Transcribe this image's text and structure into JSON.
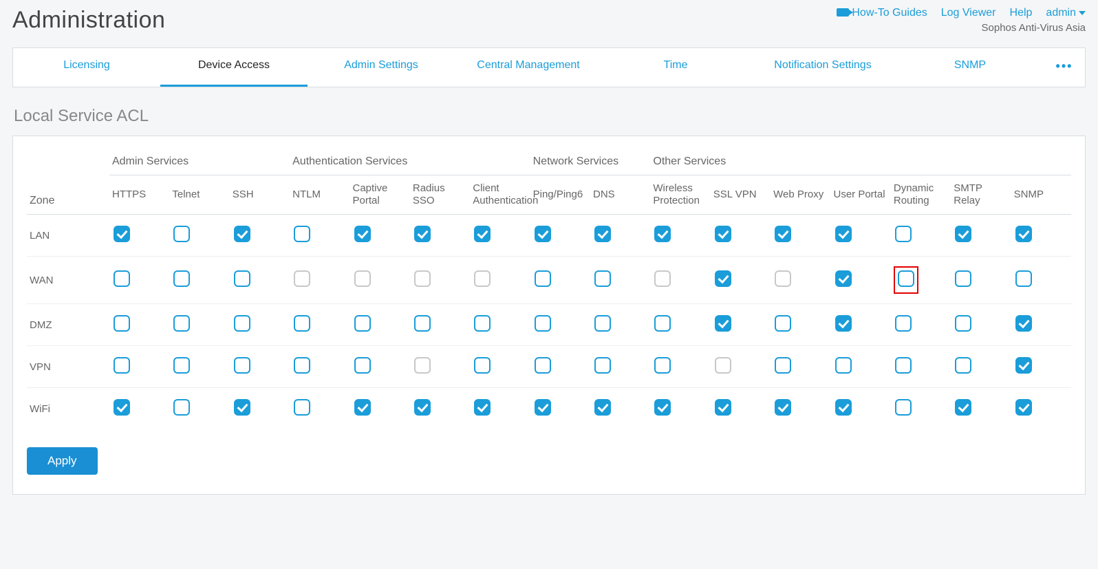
{
  "header": {
    "title": "Administration",
    "links": {
      "guides": "How-To Guides",
      "log_viewer": "Log Viewer",
      "help": "Help",
      "user": "admin"
    },
    "subtitle": "Sophos Anti-Virus Asia"
  },
  "tabs": [
    {
      "id": "licensing",
      "label": "Licensing",
      "active": false
    },
    {
      "id": "device-access",
      "label": "Device Access",
      "active": true
    },
    {
      "id": "admin-settings",
      "label": "Admin Settings",
      "active": false
    },
    {
      "id": "central-mgmt",
      "label": "Central Management",
      "active": false
    },
    {
      "id": "time",
      "label": "Time",
      "active": false
    },
    {
      "id": "notification",
      "label": "Notification Settings",
      "active": false
    },
    {
      "id": "snmp",
      "label": "SNMP",
      "active": false
    }
  ],
  "section": {
    "title": "Local Service ACL"
  },
  "acl": {
    "zone_header": "Zone",
    "groups": [
      {
        "id": "admin",
        "label": "Admin Services",
        "span": 3
      },
      {
        "id": "auth",
        "label": "Authentication Services",
        "span": 4
      },
      {
        "id": "network",
        "label": "Network Services",
        "span": 2
      },
      {
        "id": "other",
        "label": "Other Services",
        "span": 7
      }
    ],
    "columns": [
      {
        "id": "https",
        "label": "HTTPS"
      },
      {
        "id": "telnet",
        "label": "Telnet"
      },
      {
        "id": "ssh",
        "label": "SSH"
      },
      {
        "id": "ntlm",
        "label": "NTLM"
      },
      {
        "id": "captive",
        "label": "Captive Portal"
      },
      {
        "id": "radius",
        "label": "Radius SSO"
      },
      {
        "id": "clientauth",
        "label": "Client Authentication"
      },
      {
        "id": "ping",
        "label": "Ping/Ping6"
      },
      {
        "id": "dns",
        "label": "DNS"
      },
      {
        "id": "wireless",
        "label": "Wireless Protection"
      },
      {
        "id": "sslvpn",
        "label": "SSL VPN"
      },
      {
        "id": "webproxy",
        "label": "Web Proxy"
      },
      {
        "id": "userportal",
        "label": "User Portal"
      },
      {
        "id": "dynrouting",
        "label": "Dynamic Routing"
      },
      {
        "id": "smtprelay",
        "label": "SMTP Relay"
      },
      {
        "id": "snmp",
        "label": "SNMP"
      }
    ],
    "zones": [
      {
        "id": "lan",
        "label": "LAN",
        "cells": [
          {
            "c": true
          },
          {
            "c": false
          },
          {
            "c": true
          },
          {
            "c": false
          },
          {
            "c": true
          },
          {
            "c": true
          },
          {
            "c": true
          },
          {
            "c": true
          },
          {
            "c": true
          },
          {
            "c": true
          },
          {
            "c": true
          },
          {
            "c": true
          },
          {
            "c": true
          },
          {
            "c": false
          },
          {
            "c": true
          },
          {
            "c": true
          }
        ]
      },
      {
        "id": "wan",
        "label": "WAN",
        "cells": [
          {
            "c": false
          },
          {
            "c": false
          },
          {
            "c": false
          },
          {
            "c": false,
            "d": true
          },
          {
            "c": false,
            "d": true
          },
          {
            "c": false,
            "d": true
          },
          {
            "c": false,
            "d": true
          },
          {
            "c": false
          },
          {
            "c": false
          },
          {
            "c": false,
            "d": true
          },
          {
            "c": true
          },
          {
            "c": false,
            "d": true
          },
          {
            "c": true
          },
          {
            "c": false,
            "hl": true
          },
          {
            "c": false
          },
          {
            "c": false
          }
        ]
      },
      {
        "id": "dmz",
        "label": "DMZ",
        "cells": [
          {
            "c": false
          },
          {
            "c": false
          },
          {
            "c": false
          },
          {
            "c": false
          },
          {
            "c": false
          },
          {
            "c": false
          },
          {
            "c": false
          },
          {
            "c": false
          },
          {
            "c": false
          },
          {
            "c": false
          },
          {
            "c": true
          },
          {
            "c": false
          },
          {
            "c": true
          },
          {
            "c": false
          },
          {
            "c": false
          },
          {
            "c": true
          }
        ]
      },
      {
        "id": "vpn",
        "label": "VPN",
        "cells": [
          {
            "c": false
          },
          {
            "c": false
          },
          {
            "c": false
          },
          {
            "c": false
          },
          {
            "c": false
          },
          {
            "c": false,
            "d": true
          },
          {
            "c": false
          },
          {
            "c": false
          },
          {
            "c": false
          },
          {
            "c": false
          },
          {
            "c": false,
            "d": true
          },
          {
            "c": false
          },
          {
            "c": false
          },
          {
            "c": false
          },
          {
            "c": false
          },
          {
            "c": true
          }
        ]
      },
      {
        "id": "wifi",
        "label": "WiFi",
        "cells": [
          {
            "c": true
          },
          {
            "c": false
          },
          {
            "c": true
          },
          {
            "c": false
          },
          {
            "c": true
          },
          {
            "c": true
          },
          {
            "c": true
          },
          {
            "c": true
          },
          {
            "c": true
          },
          {
            "c": true
          },
          {
            "c": true
          },
          {
            "c": true
          },
          {
            "c": true
          },
          {
            "c": false
          },
          {
            "c": true
          },
          {
            "c": true
          }
        ]
      }
    ]
  },
  "actions": {
    "apply": "Apply"
  }
}
